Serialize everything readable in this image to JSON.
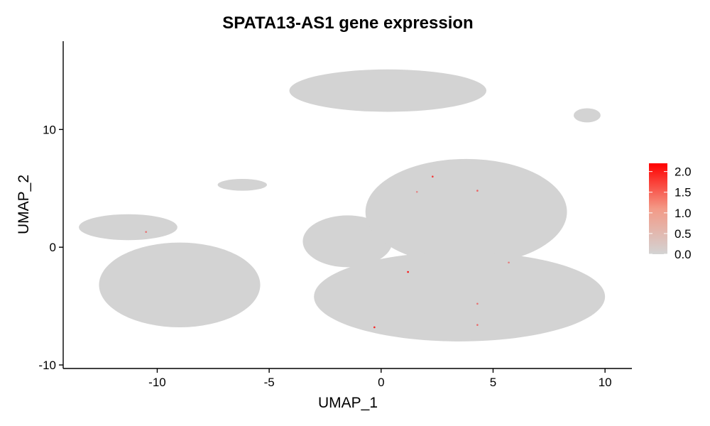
{
  "chart_data": {
    "type": "scatter",
    "title": "SPATA13-AS1 gene expression",
    "xlabel": "UMAP_1",
    "ylabel": "UMAP_2",
    "xlim": [
      -14.2,
      11.2
    ],
    "ylim": [
      -10.3,
      17.5
    ],
    "x_ticks": [
      -10,
      -5,
      0,
      5,
      10
    ],
    "y_ticks": [
      -10,
      0,
      10
    ],
    "grid": false,
    "legend": {
      "position": "right",
      "type": "colorbar",
      "min": 0.0,
      "max": 2.2,
      "ticks": [
        "0.0",
        "0.5",
        "1.0",
        "1.5",
        "2.0"
      ],
      "tick_values": [
        0.0,
        0.5,
        1.0,
        1.5,
        2.0
      ],
      "color_low": "#d3d3d3",
      "color_high": "#ff0000"
    },
    "clusters": [
      {
        "id": "top-center",
        "cx": 0.3,
        "cy": 13.3,
        "rx": 4.4,
        "ry": 1.8
      },
      {
        "id": "top-right-small",
        "cx": 9.2,
        "cy": 11.2,
        "rx": 0.6,
        "ry": 0.6
      },
      {
        "id": "small-left-strand",
        "cx": -6.2,
        "cy": 5.3,
        "rx": 1.1,
        "ry": 0.5
      },
      {
        "id": "left-top",
        "cx": -11.3,
        "cy": 1.7,
        "rx": 2.2,
        "ry": 1.1
      },
      {
        "id": "left-main",
        "cx": -9.0,
        "cy": -3.2,
        "rx": 3.6,
        "ry": 3.6
      },
      {
        "id": "center-strand",
        "cx": -1.5,
        "cy": 0.5,
        "rx": 2.0,
        "ry": 2.2
      },
      {
        "id": "right-large-upper",
        "cx": 3.8,
        "cy": 3.0,
        "rx": 4.5,
        "ry": 4.5
      },
      {
        "id": "right-large-lower",
        "cx": 3.5,
        "cy": -4.2,
        "rx": 6.5,
        "ry": 3.8
      }
    ],
    "expressing_points": [
      {
        "x": 2.3,
        "y": 6.0,
        "value": 1.6
      },
      {
        "x": 4.3,
        "y": 4.8,
        "value": 1.2
      },
      {
        "x": 1.2,
        "y": -2.1,
        "value": 2.0
      },
      {
        "x": -0.3,
        "y": -6.8,
        "value": 1.8
      },
      {
        "x": 4.3,
        "y": -4.8,
        "value": 1.0
      },
      {
        "x": 4.3,
        "y": -6.6,
        "value": 1.1
      },
      {
        "x": 5.7,
        "y": -1.3,
        "value": 0.9
      },
      {
        "x": -10.5,
        "y": 1.3,
        "value": 1.0
      },
      {
        "x": 1.6,
        "y": 4.7,
        "value": 0.8
      }
    ]
  }
}
